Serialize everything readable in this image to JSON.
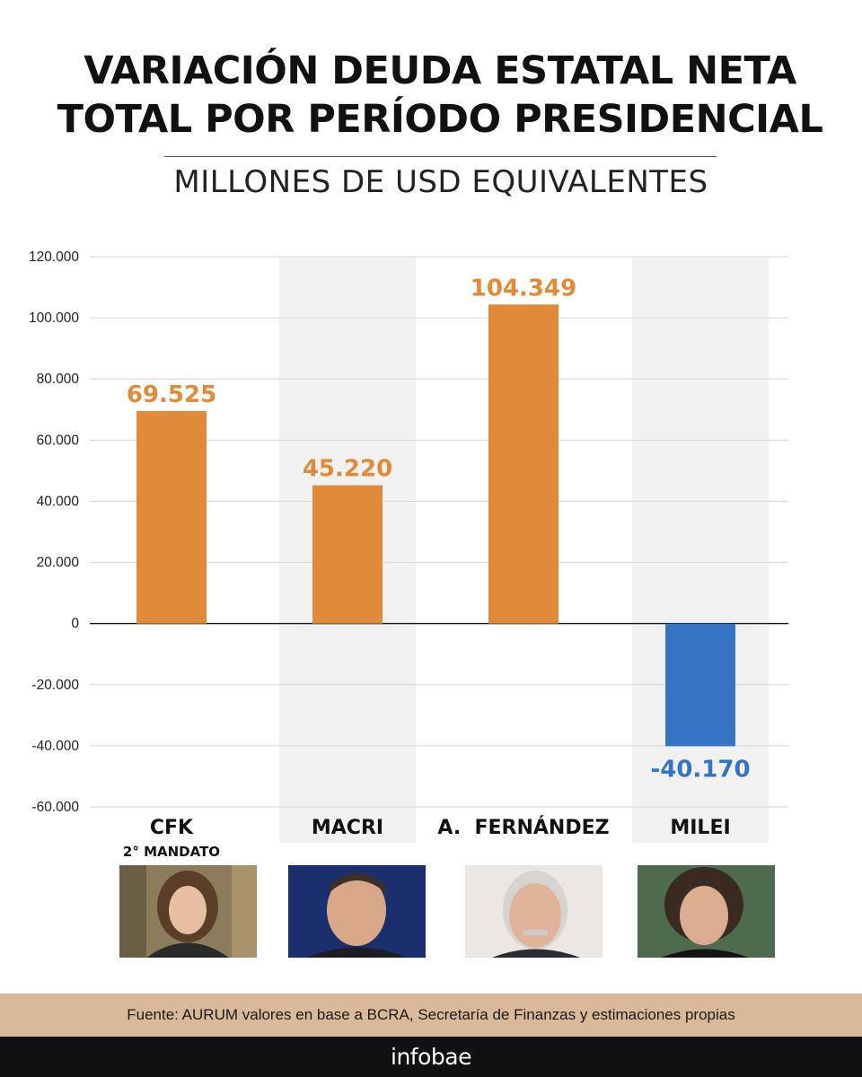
{
  "title": {
    "line1": "VARIACIÓN DEUDA ESTATAL NETA",
    "line2": "TOTAL POR PERÍODO PRESIDENCIAL"
  },
  "subtitle": "MILLONES DE USD EQUIVALENTES",
  "chart_data": {
    "type": "bar",
    "title": "VARIACIÓN DEUDA ESTATAL NETA TOTAL POR PERÍODO PRESIDENCIAL",
    "ylabel": "MILLONES DE USD EQUIVALENTES",
    "xlabel": "",
    "categories": [
      "CFK",
      "MACRI",
      "A.  FERNÁNDEZ",
      "MILEI"
    ],
    "category_sublabels": [
      "2° MANDATO",
      "",
      "",
      ""
    ],
    "values": [
      69525,
      45220,
      104349,
      -40170
    ],
    "value_labels": [
      "69.525",
      "45.220",
      "104.349",
      "-40.170"
    ],
    "ylim": [
      -60000,
      120000
    ],
    "yticks": [
      120000,
      100000,
      80000,
      60000,
      40000,
      20000,
      0,
      -20000,
      -40000,
      -60000
    ],
    "ytick_labels": [
      "120.000",
      "100.000",
      "80.000",
      "60.000",
      "40.000",
      "20.000",
      "0",
      "-20.000",
      "-40.000",
      "-60.000"
    ],
    "grid": true,
    "legend": "none",
    "colors": {
      "positive": "#e08b3c",
      "negative": "#3574c4",
      "band": "#f1f1f1"
    }
  },
  "photos": [
    {
      "name": "CFK portrait",
      "icon": "portrait-cfk",
      "bg": "#8a7a5e"
    },
    {
      "name": "MACRI portrait",
      "icon": "portrait-macri",
      "bg": "#1b2f6e"
    },
    {
      "name": "A. FERNÁNDEZ portrait",
      "icon": "portrait-fernandez",
      "bg": "#e8e4e0"
    },
    {
      "name": "MILEI portrait",
      "icon": "portrait-milei",
      "bg": "#4a6a4a"
    }
  ],
  "source": "Fuente: AURUM valores en base a BCRA, Secretaría de Finanzas y estimaciones propias",
  "brand": "infobae"
}
